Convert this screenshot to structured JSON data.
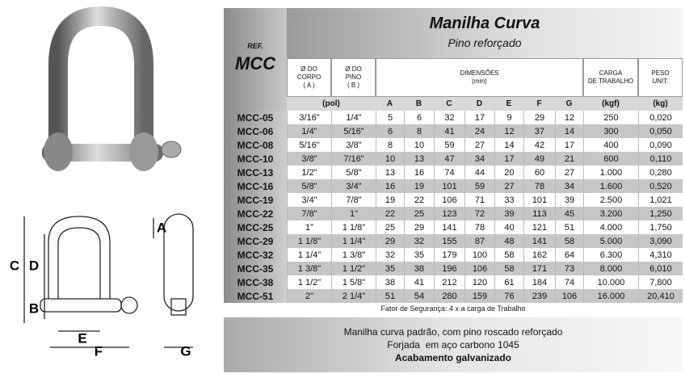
{
  "header": {
    "title": "Manilha Curva",
    "subtitle": "Pino reforçado"
  },
  "table": {
    "ref_label": "REF.",
    "ref_code": "MCC",
    "body_diameter": [
      "Ø DO",
      "CORPO",
      "( A )"
    ],
    "pin_diameter": [
      "Ø DO",
      "PINO",
      "( B )"
    ],
    "dimensions": [
      "DIMENSÕES",
      "(mm)"
    ],
    "load": [
      "CARGA",
      "DE TRABALHO"
    ],
    "weight": [
      "PESO",
      "UNIT."
    ],
    "units": [
      "(pol)",
      "A",
      "B",
      "C",
      "D",
      "E",
      "F",
      "G",
      "(kgf)",
      "(kg)"
    ],
    "rows": [
      [
        "MCC-05",
        "3/16\"",
        "1/4\"",
        "5",
        "6",
        "32",
        "17",
        "9",
        "29",
        "12",
        "250",
        "0,020"
      ],
      [
        "MCC-06",
        "1/4\"",
        "5/16\"",
        "6",
        "8",
        "41",
        "24",
        "12",
        "37",
        "14",
        "300",
        "0,050"
      ],
      [
        "MCC-08",
        "5/16\"",
        "3/8\"",
        "8",
        "10",
        "59",
        "27",
        "14",
        "42",
        "17",
        "400",
        "0,090"
      ],
      [
        "MCC-10",
        "3/8\"",
        "7/16\"",
        "10",
        "13",
        "47",
        "34",
        "17",
        "49",
        "21",
        "600",
        "0,110"
      ],
      [
        "MCC-13",
        "1/2\"",
        "5/8\"",
        "13",
        "16",
        "74",
        "44",
        "20",
        "60",
        "27",
        "1.000",
        "0,280"
      ],
      [
        "MCC-16",
        "5/8\"",
        "3/4\"",
        "16",
        "19",
        "101",
        "59",
        "27",
        "78",
        "34",
        "1.600",
        "0,520"
      ],
      [
        "MCC-19",
        "3/4\"",
        "7/8\"",
        "19",
        "22",
        "106",
        "71",
        "33",
        "101",
        "39",
        "2.500",
        "1,021"
      ],
      [
        "MCC-22",
        "7/8\"",
        "1\"",
        "22",
        "25",
        "123",
        "72",
        "39",
        "113",
        "45",
        "3.200",
        "1,250"
      ],
      [
        "MCC-25",
        "1\"",
        "1 1/8\"",
        "25",
        "29",
        "141",
        "78",
        "40",
        "121",
        "51",
        "4.000",
        "1,750"
      ],
      [
        "MCC-29",
        "1 1/8\"",
        "1 1/4\"",
        "29",
        "32",
        "155",
        "87",
        "48",
        "141",
        "58",
        "5.000",
        "3,090"
      ],
      [
        "MCC-32",
        "1 1/4\"",
        "1 3/8\"",
        "32",
        "35",
        "179",
        "100",
        "58",
        "162",
        "64",
        "6.300",
        "4,310"
      ],
      [
        "MCC-35",
        "1 3/8\"",
        "1 1/2\"",
        "35",
        "38",
        "196",
        "106",
        "58",
        "171",
        "73",
        "8.000",
        "6,010"
      ],
      [
        "MCC-38",
        "1 1/2\"",
        "1 5/8\"",
        "38",
        "41",
        "212",
        "120",
        "61",
        "184",
        "74",
        "10.000",
        "7,800"
      ],
      [
        "MCC-51",
        "2\"",
        "2 1/4\"",
        "51",
        "54",
        "280",
        "159",
        "76",
        "239",
        "106",
        "16.000",
        "20,410"
      ]
    ]
  },
  "safety_note": "Fator de Segurança: 4 x a carga de Trabalho",
  "description": [
    "Manilha curva padrão, com pino roscado reforçado",
    "Forjada  em aço carbono 1045",
    "Acabamento galvanizado"
  ],
  "diagram": {
    "labels": [
      "C",
      "D",
      "B",
      "E",
      "F",
      "A",
      "G"
    ]
  }
}
